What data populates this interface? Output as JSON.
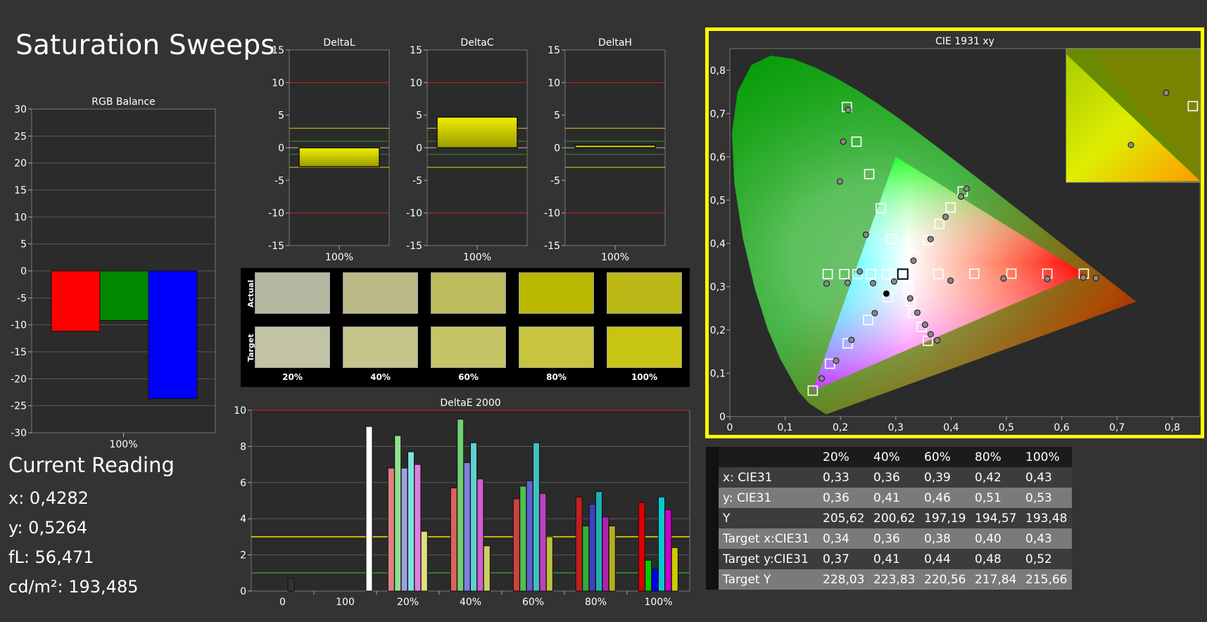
{
  "page_title": "Saturation Sweeps",
  "current_reading": {
    "title": "Current Reading",
    "lines": [
      "x: 0,4282",
      "y: 0,5264",
      "fL: 56,471",
      "cd/m²: 193,485"
    ]
  },
  "colors": {
    "background": "#333333",
    "plot_bg": "#2b2b2b",
    "grid": "#888888",
    "frame_yellow": "#ffff00",
    "red_line": "#cc2222",
    "yellow_line": "#e0d020",
    "green_line": "#2a9a2a",
    "bar_yellow": "#d6d600"
  },
  "chart_data": [
    {
      "id": "rgb-balance",
      "type": "bar",
      "title": "RGB Balance",
      "categories": [
        "100%"
      ],
      "series": [
        {
          "color": "#ff0000",
          "values": [
            -11.2
          ]
        },
        {
          "color": "#008800",
          "values": [
            -9.2
          ]
        },
        {
          "color": "#0000ff",
          "values": [
            -23.7
          ]
        }
      ],
      "ylim": [
        -30,
        30
      ],
      "yticks": [
        "30",
        "25",
        "20",
        "15",
        "10",
        "5",
        "0",
        "-5",
        "-10",
        "-15",
        "-20",
        "-25",
        "-30"
      ],
      "grid": true
    },
    {
      "id": "delta-l",
      "type": "bar",
      "title": "DeltaL",
      "categories": [
        "100%"
      ],
      "values": [
        -2.9
      ],
      "ylim": [
        -15,
        15
      ],
      "yticks": [
        "15",
        "10",
        "5",
        "0",
        "-5",
        "-10",
        "-15"
      ],
      "reference_lines": {
        "red": [
          10,
          -10
        ],
        "yellow": [
          3,
          -3
        ],
        "green": [
          1,
          -1
        ]
      }
    },
    {
      "id": "delta-c",
      "type": "bar",
      "title": "DeltaC",
      "categories": [
        "100%"
      ],
      "values": [
        4.7
      ],
      "ylim": [
        -15,
        15
      ],
      "yticks": [
        "15",
        "10",
        "5",
        "0",
        "-5",
        "-10",
        "-15"
      ],
      "reference_lines": {
        "red": [
          10,
          -10
        ],
        "yellow": [
          3,
          -3
        ],
        "green": [
          1,
          -1
        ]
      }
    },
    {
      "id": "delta-h",
      "type": "bar",
      "title": "DeltaH",
      "categories": [
        "100%"
      ],
      "values": [
        0.4
      ],
      "ylim": [
        -15,
        15
      ],
      "yticks": [
        "15",
        "10",
        "5",
        "0",
        "-5",
        "-10",
        "-15"
      ],
      "reference_lines": {
        "red": [
          10,
          -10
        ],
        "yellow": [
          3,
          -3
        ],
        "green": [
          1,
          -1
        ]
      }
    },
    {
      "id": "swatches",
      "type": "table",
      "row_labels": [
        "Actual",
        "Target"
      ],
      "column_labels": [
        "20%",
        "40%",
        "60%",
        "80%",
        "100%"
      ],
      "actual_colors": [
        "#b6b8a2",
        "#bbba86",
        "#bcbb5e",
        "#bab700",
        "#bcb817"
      ],
      "target_colors": [
        "#c2c3a4",
        "#c5c48a",
        "#c6c566",
        "#c7c53d",
        "#c8c414"
      ]
    },
    {
      "id": "delta-e-2000",
      "type": "bar",
      "title": "DeltaE 2000",
      "ylim": [
        0,
        10
      ],
      "yticks": [
        "10",
        "8",
        "6",
        "4",
        "2",
        "0"
      ],
      "reference_lines": {
        "yellow": [
          3
        ],
        "green": [
          1
        ]
      },
      "groups": [
        {
          "label": "0",
          "bars": [
            {
              "color": "#333333",
              "value": 0.7
            }
          ]
        },
        {
          "label": "100",
          "bars": [
            {
              "color": "#ffffff",
              "value": 9.1
            }
          ]
        },
        {
          "label": "20%",
          "bars": [
            {
              "color": "#e08080",
              "value": 6.8
            },
            {
              "color": "#90e090",
              "value": 8.6
            },
            {
              "color": "#a0a0e0",
              "value": 6.8
            },
            {
              "color": "#80e0e0",
              "value": 7.7
            },
            {
              "color": "#e080e0",
              "value": 7.0
            },
            {
              "color": "#e0e080",
              "value": 3.3
            }
          ]
        },
        {
          "label": "40%",
          "bars": [
            {
              "color": "#e06060",
              "value": 5.7
            },
            {
              "color": "#70d070",
              "value": 9.5
            },
            {
              "color": "#8080e0",
              "value": 7.1
            },
            {
              "color": "#60d0d0",
              "value": 8.2
            },
            {
              "color": "#d060d0",
              "value": 6.2
            },
            {
              "color": "#d0d060",
              "value": 2.5
            }
          ]
        },
        {
          "label": "60%",
          "bars": [
            {
              "color": "#d04040",
              "value": 5.1
            },
            {
              "color": "#50c050",
              "value": 5.8
            },
            {
              "color": "#6060d0",
              "value": 6.1
            },
            {
              "color": "#40c0c0",
              "value": 8.2
            },
            {
              "color": "#c040c0",
              "value": 5.4
            },
            {
              "color": "#c0c040",
              "value": 3.0
            }
          ]
        },
        {
          "label": "80%",
          "bars": [
            {
              "color": "#c02020",
              "value": 5.2
            },
            {
              "color": "#30b030",
              "value": 3.6
            },
            {
              "color": "#4040c0",
              "value": 4.8
            },
            {
              "color": "#20b0b0",
              "value": 5.5
            },
            {
              "color": "#b020b0",
              "value": 4.1
            },
            {
              "color": "#b0b020",
              "value": 3.6
            }
          ]
        },
        {
          "label": "100%",
          "bars": [
            {
              "color": "#dd0000",
              "value": 4.9
            },
            {
              "color": "#00cc00",
              "value": 1.7
            },
            {
              "color": "#0000ee",
              "value": 1.2
            },
            {
              "color": "#00cccc",
              "value": 5.2
            },
            {
              "color": "#cc00cc",
              "value": 4.5
            },
            {
              "color": "#cccc00",
              "value": 2.4
            }
          ]
        }
      ]
    },
    {
      "id": "cie-1931",
      "type": "scatter",
      "title": "CIE 1931 xy",
      "xlim": [
        0,
        0.85
      ],
      "ylim": [
        0,
        0.85
      ],
      "xticks": [
        "0",
        "0,1",
        "0,2",
        "0,3",
        "0,4",
        "0,5",
        "0,6",
        "0,7",
        "0,8"
      ],
      "yticks": [
        "0",
        "0,1",
        "0,2",
        "0,3",
        "0,4",
        "0,5",
        "0,6",
        "0,7",
        "0,8"
      ],
      "gamut_triangle": [
        [
          0.64,
          0.33
        ],
        [
          0.3,
          0.6
        ],
        [
          0.15,
          0.06
        ]
      ],
      "white_point": [
        0.3127,
        0.329
      ],
      "targets": [
        [
          0.2115,
          0.715
        ],
        [
          0.229,
          0.635
        ],
        [
          0.252,
          0.56
        ],
        [
          0.273,
          0.481
        ],
        [
          0.292,
          0.41
        ],
        [
          0.3127,
          0.329
        ],
        [
          0.377,
          0.329
        ],
        [
          0.442,
          0.33
        ],
        [
          0.509,
          0.33
        ],
        [
          0.574,
          0.33
        ],
        [
          0.64,
          0.33
        ],
        [
          0.25,
          0.223
        ],
        [
          0.213,
          0.169
        ],
        [
          0.181,
          0.122
        ],
        [
          0.15,
          0.06
        ],
        [
          0.177,
          0.329
        ],
        [
          0.207,
          0.329
        ],
        [
          0.231,
          0.329
        ],
        [
          0.255,
          0.329
        ],
        [
          0.284,
          0.329
        ],
        [
          0.286,
          0.276
        ],
        [
          0.322,
          0.299
        ],
        [
          0.326,
          0.266
        ],
        [
          0.332,
          0.239
        ],
        [
          0.347,
          0.207
        ],
        [
          0.358,
          0.175
        ],
        [
          0.335,
          0.369
        ],
        [
          0.358,
          0.408
        ],
        [
          0.379,
          0.445
        ],
        [
          0.399,
          0.483
        ],
        [
          0.421,
          0.52
        ]
      ],
      "measured": [
        [
          0.214,
          0.708
        ],
        [
          0.205,
          0.635
        ],
        [
          0.199,
          0.543
        ],
        [
          0.246,
          0.42
        ],
        [
          0.235,
          0.335
        ],
        [
          0.175,
          0.307
        ],
        [
          0.213,
          0.309
        ],
        [
          0.259,
          0.308
        ],
        [
          0.297,
          0.312
        ],
        [
          0.326,
          0.273
        ],
        [
          0.339,
          0.24
        ],
        [
          0.353,
          0.212
        ],
        [
          0.363,
          0.19
        ],
        [
          0.375,
          0.176
        ],
        [
          0.262,
          0.239
        ],
        [
          0.22,
          0.177
        ],
        [
          0.192,
          0.129
        ],
        [
          0.166,
          0.088
        ],
        [
          0.332,
          0.36
        ],
        [
          0.363,
          0.41
        ],
        [
          0.39,
          0.461
        ],
        [
          0.418,
          0.508
        ],
        [
          0.428,
          0.5264
        ],
        [
          0.399,
          0.314
        ],
        [
          0.495,
          0.319
        ],
        [
          0.574,
          0.318
        ],
        [
          0.639,
          0.321
        ],
        [
          0.662,
          0.32
        ]
      ],
      "current": [
        0.283,
        0.284
      ],
      "inset": {
        "targets": [
          [
            0.428,
            0.519
          ]
        ],
        "measured": [
          [
            0.4282,
            0.5264
          ],
          [
            0.418,
            0.508
          ]
        ]
      }
    }
  ],
  "reading_table": {
    "headers": [
      "",
      "20%",
      "40%",
      "60%",
      "80%",
      "100%"
    ],
    "rows": [
      {
        "label": "x: CIE31",
        "values": [
          "0,33",
          "0,36",
          "0,39",
          "0,42",
          "0,43"
        ]
      },
      {
        "label": "y: CIE31",
        "values": [
          "0,36",
          "0,41",
          "0,46",
          "0,51",
          "0,53"
        ]
      },
      {
        "label": "Y",
        "values": [
          "205,62",
          "200,62",
          "197,19",
          "194,57",
          "193,48"
        ]
      },
      {
        "label": "Target x:CIE31",
        "values": [
          "0,34",
          "0,36",
          "0,38",
          "0,40",
          "0,43"
        ]
      },
      {
        "label": "Target y:CIE31",
        "values": [
          "0,37",
          "0,41",
          "0,44",
          "0,48",
          "0,52"
        ]
      },
      {
        "label": "Target Y",
        "values": [
          "228,03",
          "223,83",
          "220,56",
          "217,84",
          "215,66"
        ]
      }
    ]
  }
}
